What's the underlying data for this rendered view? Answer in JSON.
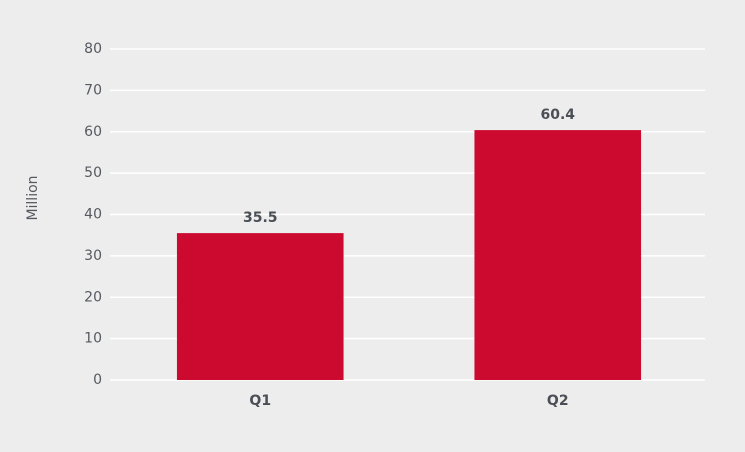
{
  "chart_data": {
    "type": "bar",
    "y_label": "Million",
    "categories": [
      "Q1",
      "Q2"
    ],
    "values": [
      35.5,
      60.4
    ],
    "color": "#cc0a2f",
    "ylim": [
      0,
      80
    ],
    "yticks": [
      0,
      10,
      20,
      30,
      40,
      50,
      60,
      70,
      80
    ],
    "grid": true
  }
}
